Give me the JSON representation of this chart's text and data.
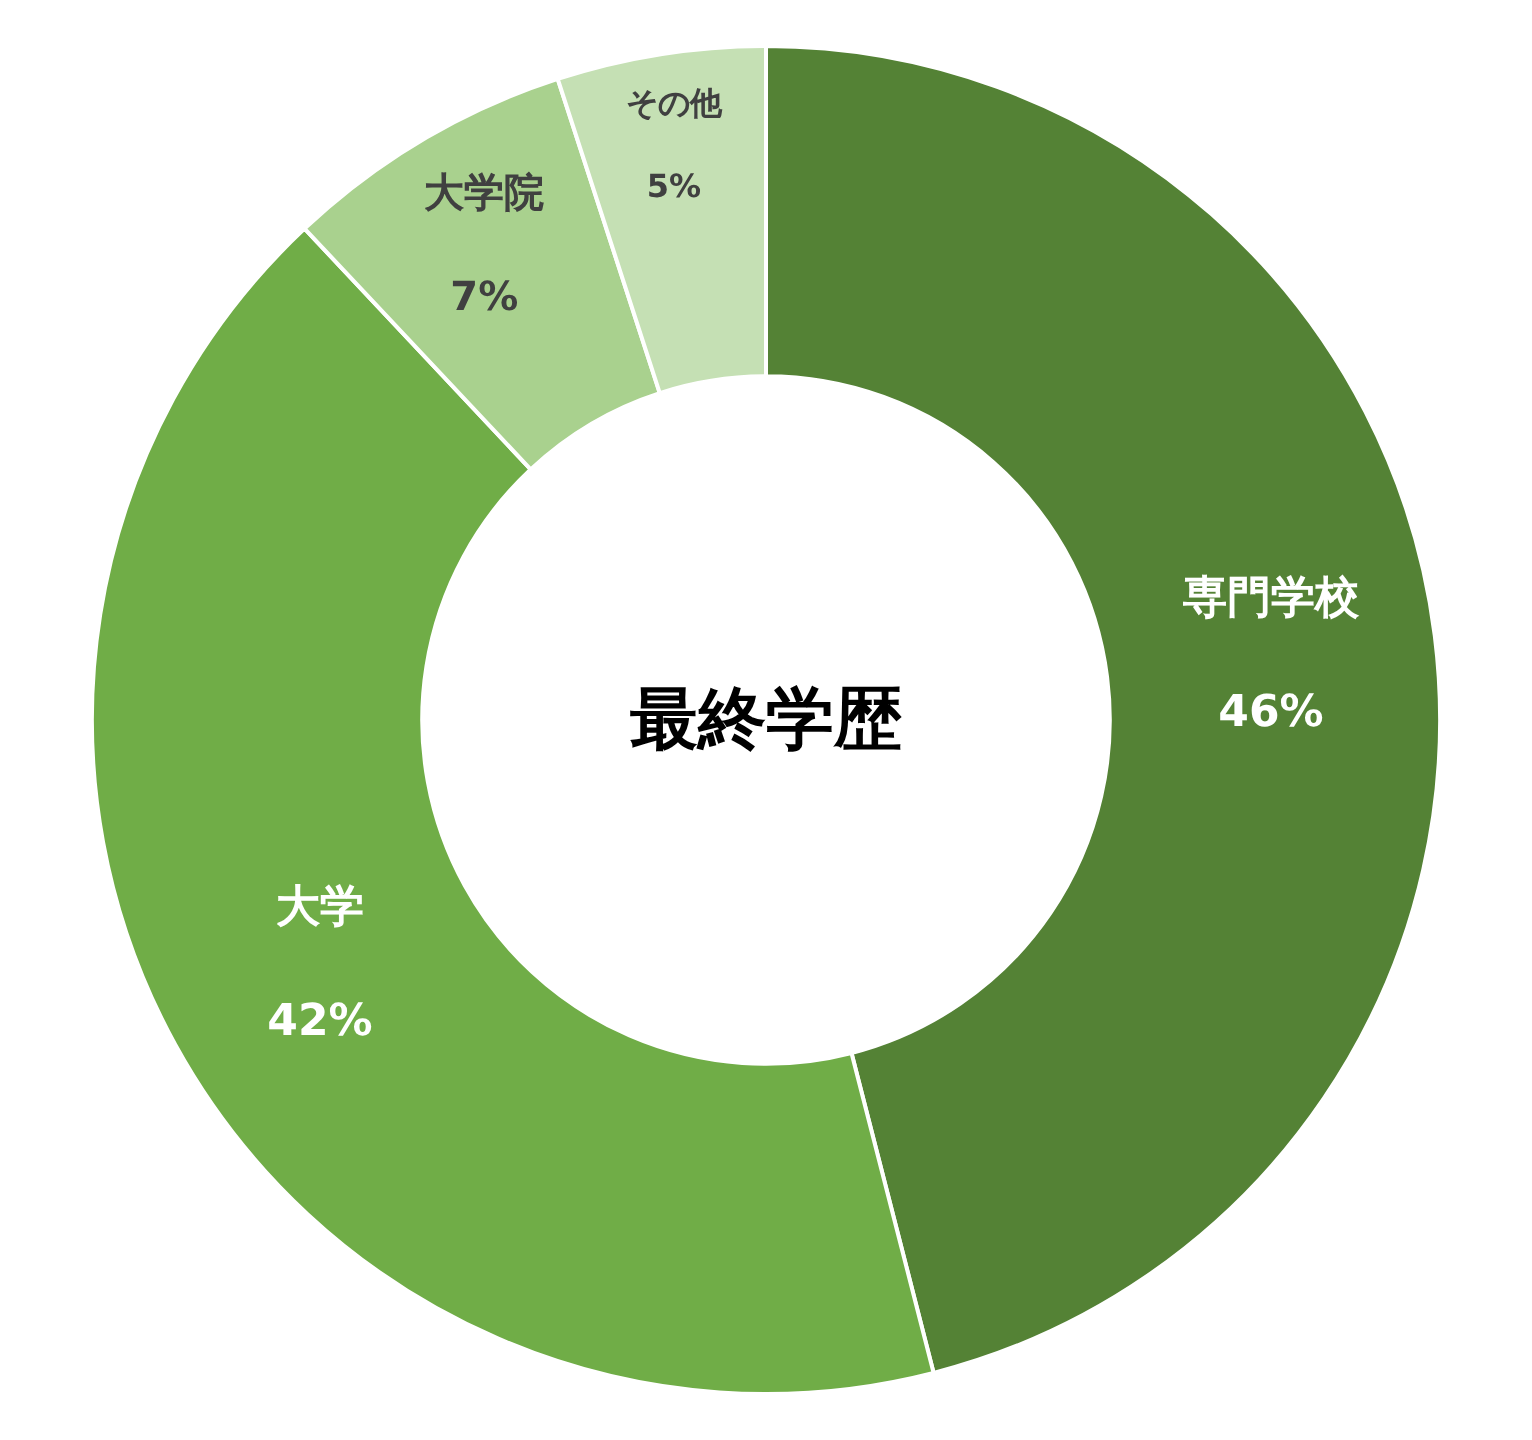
{
  "chart_data": {
    "type": "donut",
    "title": "最終学歴",
    "categories": [
      "専門学校",
      "大学",
      "大学院",
      "その他"
    ],
    "values": [
      46,
      42,
      7,
      5
    ],
    "value_labels": [
      "46%",
      "42%",
      "7%",
      "5%"
    ],
    "colors": [
      "#548235",
      "#70ad47",
      "#a9d18e",
      "#c5e0b4"
    ],
    "legend": false
  }
}
